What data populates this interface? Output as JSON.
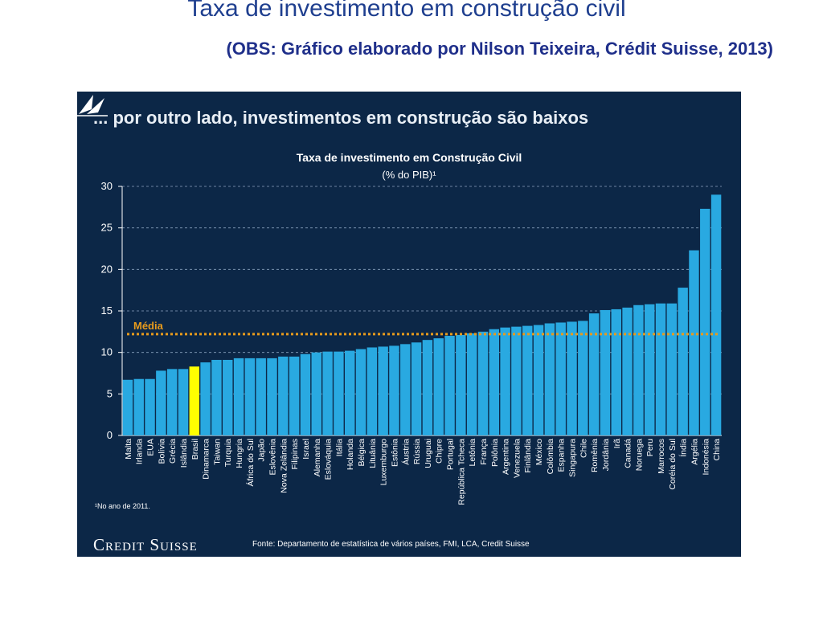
{
  "slide": {
    "title": "Taxa de investimento em construção civil",
    "subtitle": "(OBS: Gráfico elaborado por  Nilson Teixeira, Crédit Suisse, 2013)"
  },
  "panel": {
    "headline": "... por outro lado, investimentos em construção são baixos",
    "footnote": "¹No ano de 2011.",
    "logo": "Credit Suisse",
    "source": "Fonte: Departamento de estatística de vários países, FMI, LCA, Credit Suisse",
    "background": "#0c2747"
  },
  "chart_data": {
    "type": "bar",
    "title": "Taxa de investimento em Construção Civil",
    "subtitle": "(% do PIB)¹",
    "xlabel": "",
    "ylabel": "",
    "ylim": [
      0,
      30
    ],
    "yticks": [
      0,
      5,
      10,
      15,
      20,
      25,
      30
    ],
    "grid": true,
    "bar_color": "#29a9e1",
    "highlight_color": "#ffff00",
    "highlight_category": "Brasil",
    "reference_line": {
      "label": "Média",
      "value": 12.2,
      "color": "#e89b1c"
    },
    "categories": [
      "Malta",
      "Irlanda",
      "EUA",
      "Bolívia",
      "Grécia",
      "Islândia",
      "Brasil",
      "Dinamarca",
      "Taiwan",
      "Turquia",
      "Hungria",
      "África do Sul",
      "Japão",
      "Eslovênia",
      "Nova Zelândia",
      "Filipinas",
      "Israel",
      "Alemanha",
      "Eslováquia",
      "Itália",
      "Holanda",
      "Bélgica",
      "Lituânia",
      "Luxemburgo",
      "Estônia",
      "Áustria",
      "Rússia",
      "Uruguai",
      "Chipre",
      "Portugal",
      "República Tcheca",
      "Letônia",
      "França",
      "Polônia",
      "Argentina",
      "Venezuela",
      "Finlândia",
      "México",
      "Colômbia",
      "Espanha",
      "Singapura",
      "Chile",
      "Romênia",
      "Jordânia",
      "Irã",
      "Canadá",
      "Noruega",
      "Peru",
      "Marrocos",
      "Coréia do Sul",
      "Índia",
      "Argélia",
      "Indonésia",
      "China"
    ],
    "values": [
      6.7,
      6.8,
      6.8,
      7.8,
      8.0,
      8.0,
      8.3,
      8.8,
      9.1,
      9.1,
      9.3,
      9.3,
      9.3,
      9.3,
      9.5,
      9.5,
      9.8,
      10.0,
      10.1,
      10.1,
      10.2,
      10.4,
      10.6,
      10.7,
      10.8,
      11.0,
      11.2,
      11.5,
      11.7,
      12.0,
      12.1,
      12.3,
      12.5,
      12.8,
      13.0,
      13.1,
      13.2,
      13.3,
      13.5,
      13.6,
      13.7,
      13.8,
      14.7,
      15.1,
      15.2,
      15.4,
      15.7,
      15.8,
      15.9,
      15.9,
      17.8,
      22.3,
      27.3,
      29.0
    ]
  }
}
